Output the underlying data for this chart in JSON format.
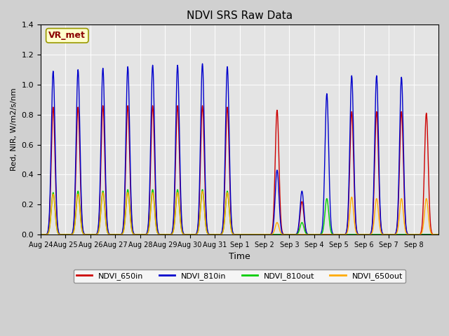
{
  "title": "NDVI SRS Raw Data",
  "xlabel": "Time",
  "ylabel": "Red, NIR, W/m2/s/nm",
  "ylim": [
    0,
    1.4
  ],
  "annotation_text": "VR_met",
  "colors": {
    "NDVI_650in": "#cc0000",
    "NDVI_810in": "#0000cc",
    "NDVI_810out": "#00cc00",
    "NDVI_650out": "#ffaa00"
  },
  "xtick_labels": [
    "Aug 24",
    "Aug 25",
    "Aug 26",
    "Aug 27",
    "Aug 28",
    "Aug 29",
    "Aug 30",
    "Aug 31",
    "Sep 1",
    "Sep 2",
    "Sep 3",
    "Sep 4",
    "Sep 5",
    "Sep 6",
    "Sep 7",
    "Sep 8"
  ],
  "peaks_650in": [
    0.85,
    0.85,
    0.86,
    0.86,
    0.86,
    0.86,
    0.86,
    0.85,
    0.0,
    0.83,
    0.22,
    0.0,
    0.82,
    0.82,
    0.82,
    0.81
  ],
  "peaks_810in": [
    1.09,
    1.1,
    1.11,
    1.12,
    1.13,
    1.13,
    1.14,
    1.12,
    0.0,
    0.43,
    0.29,
    0.94,
    1.06,
    1.06,
    1.05,
    0.0
  ],
  "peaks_810out": [
    0.28,
    0.29,
    0.29,
    0.3,
    0.3,
    0.3,
    0.3,
    0.29,
    0.0,
    0.0,
    0.08,
    0.24,
    0.0,
    0.0,
    0.0,
    0.0
  ],
  "peaks_650out": [
    0.27,
    0.27,
    0.28,
    0.28,
    0.28,
    0.28,
    0.29,
    0.28,
    0.0,
    0.08,
    0.0,
    0.0,
    0.25,
    0.24,
    0.24,
    0.24
  ]
}
